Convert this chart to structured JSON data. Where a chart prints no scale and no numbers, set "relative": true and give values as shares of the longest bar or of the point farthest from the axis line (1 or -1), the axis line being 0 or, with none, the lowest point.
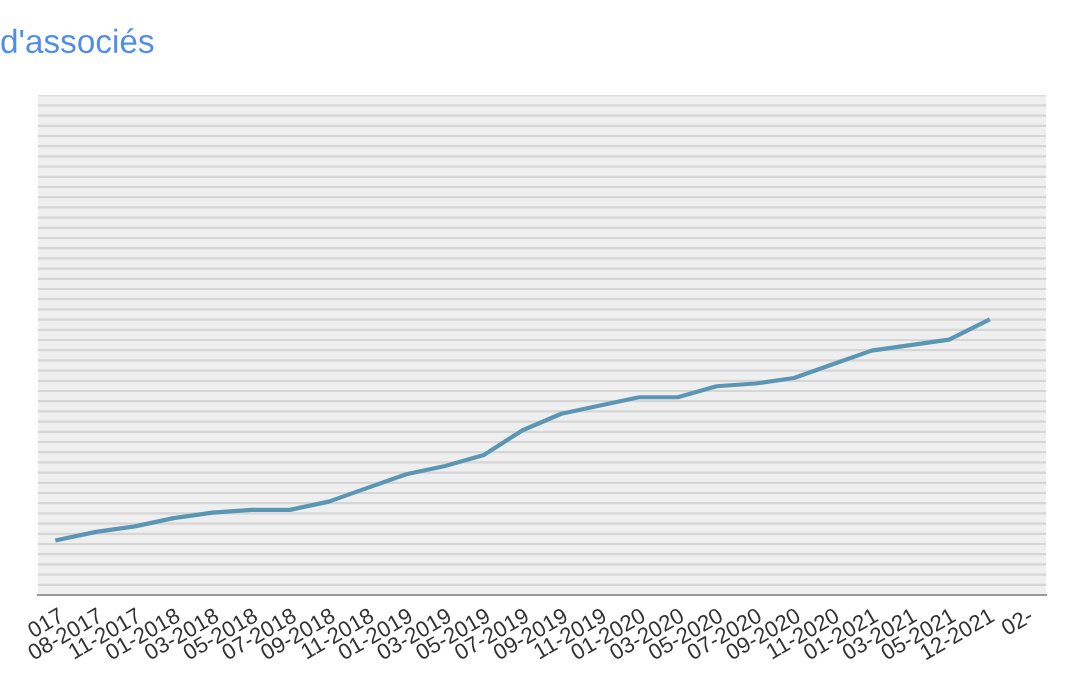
{
  "chart_data": {
    "type": "line",
    "title": "d'associés",
    "relative": true,
    "grid": "y",
    "marker": "none",
    "line_style": "solid",
    "categories": [
      "017",
      "08-2017",
      "11-2017",
      "01-2018",
      "03-2018",
      "05-2018",
      "07-2018",
      "09-2018",
      "11-2018",
      "01-2019",
      "03-2019",
      "05-2019",
      "07-2019",
      "09-2019",
      "11-2019",
      "01-2020",
      "03-2020",
      "05-2020",
      "07-2020",
      "09-2020",
      "11-2020",
      "01-2021",
      "03-2021",
      "05-2021",
      "12-2021",
      "02-"
    ],
    "series": [
      {
        "color": "#5b97b5",
        "values": [
          0.2,
          0.23,
          0.25,
          0.28,
          0.3,
          0.31,
          0.31,
          0.34,
          0.39,
          0.44,
          0.47,
          0.51,
          0.6,
          0.66,
          0.69,
          0.72,
          0.72,
          0.76,
          0.77,
          0.79,
          0.84,
          0.89,
          0.91,
          0.93,
          1.0,
          null
        ]
      }
    ]
  }
}
